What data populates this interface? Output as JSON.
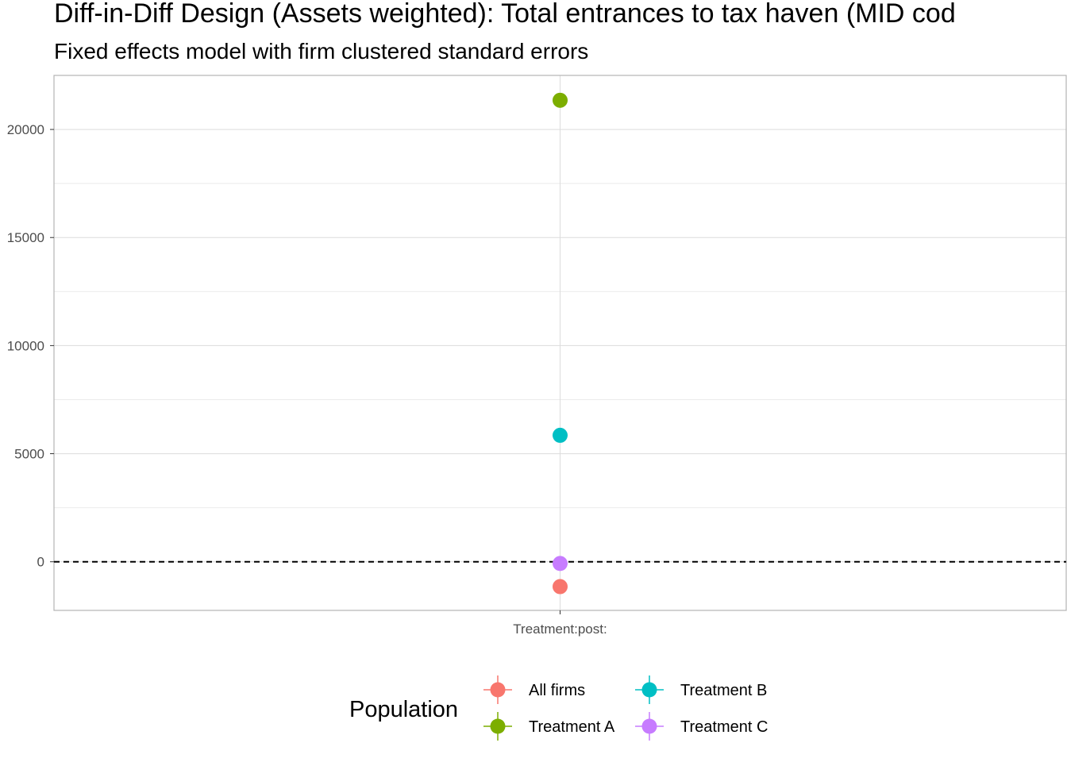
{
  "chart_data": {
    "type": "scatter",
    "title": "Diff-in-Diff Design (Assets weighted): Total entrances to tax haven (MID cod",
    "subtitle": "Fixed effects model with firm clustered standard errors",
    "xlabel": "",
    "ylabel": "",
    "categories": [
      "Treatment:post:"
    ],
    "ylim": [
      -2250,
      22500
    ],
    "yticks": [
      0,
      5000,
      10000,
      15000,
      20000
    ],
    "reference_line": {
      "y": 0,
      "style": "dashed"
    },
    "grid": true,
    "legend": {
      "title": "Population",
      "position": "bottom"
    },
    "series": [
      {
        "name": "All firms",
        "color": "#F8766D",
        "values": [
          -1150
        ]
      },
      {
        "name": "Treatment A",
        "color": "#7CAE00",
        "values": [
          21350
        ]
      },
      {
        "name": "Treatment B",
        "color": "#00BFC4",
        "values": [
          5850
        ]
      },
      {
        "name": "Treatment C",
        "color": "#C77CFF",
        "values": [
          -80
        ]
      }
    ]
  }
}
